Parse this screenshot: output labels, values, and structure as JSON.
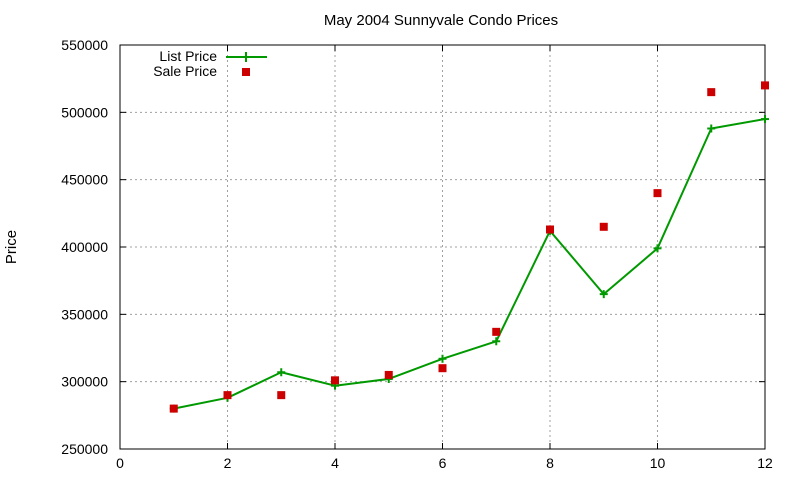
{
  "chart_data": {
    "type": "line",
    "title": "May 2004 Sunnyvale Condo Prices",
    "xlabel": "",
    "ylabel": "Price",
    "xlim": [
      0,
      12
    ],
    "ylim": [
      250000,
      550000
    ],
    "x_ticks": [
      0,
      2,
      4,
      6,
      8,
      10,
      12
    ],
    "y_ticks": [
      250000,
      300000,
      350000,
      400000,
      450000,
      500000,
      550000
    ],
    "grid": true,
    "legend_position": "top-left",
    "series": [
      {
        "name": "List Price",
        "style": "line+cross",
        "color": "#009900",
        "x": [
          1,
          2,
          3,
          4,
          5,
          6,
          7,
          8,
          9,
          10,
          11,
          12
        ],
        "y": [
          280000,
          288000,
          307000,
          297000,
          302000,
          317000,
          330000,
          412000,
          365000,
          399000,
          488000,
          495000
        ]
      },
      {
        "name": "Sale Price",
        "style": "square",
        "color": "#cc0000",
        "x": [
          1,
          2,
          3,
          4,
          5,
          6,
          7,
          8,
          9,
          10,
          11,
          12
        ],
        "y": [
          280000,
          290000,
          290000,
          301000,
          305000,
          310000,
          337000,
          413000,
          415000,
          440000,
          515000,
          520000
        ]
      }
    ]
  }
}
